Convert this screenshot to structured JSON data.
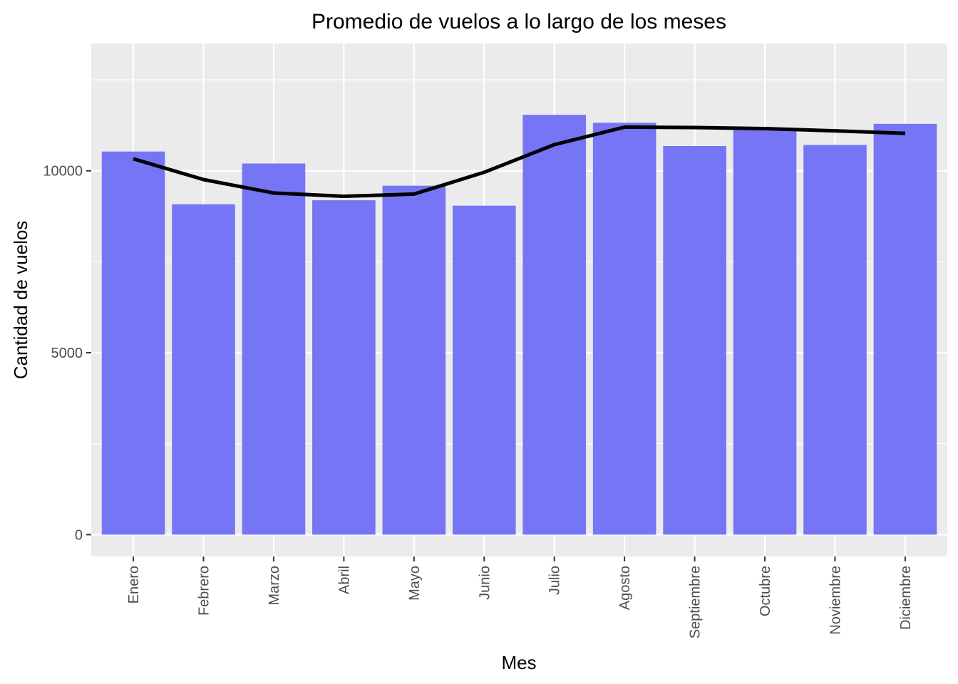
{
  "chart_data": {
    "type": "bar",
    "title": "Promedio de vuelos a lo largo de los meses",
    "xlabel": "Mes",
    "ylabel": "Cantidad de vuelos",
    "categories": [
      "Enero",
      "Febrero",
      "Marzo",
      "Abril",
      "Mayo",
      "Junio",
      "Julio",
      "Agosto",
      "Septiembre",
      "Octubre",
      "Noviembre",
      "Diciembre"
    ],
    "values": [
      10530,
      9080,
      10200,
      9190,
      9590,
      9040,
      11540,
      11320,
      10680,
      11180,
      10710,
      11290
    ],
    "trend": [
      10330,
      9760,
      9390,
      9300,
      9360,
      9960,
      10720,
      11200,
      11190,
      11160,
      11100,
      11030
    ],
    "ylim": [
      -600,
      13500
    ],
    "yticks": [
      0,
      5000,
      10000
    ],
    "ytick_labels": [
      "0",
      "5000",
      "10000"
    ],
    "grid": true,
    "colors": {
      "bar": "#7575f5",
      "trend": "#000000",
      "panel": "#ebebeb",
      "grid": "#ffffff"
    }
  }
}
